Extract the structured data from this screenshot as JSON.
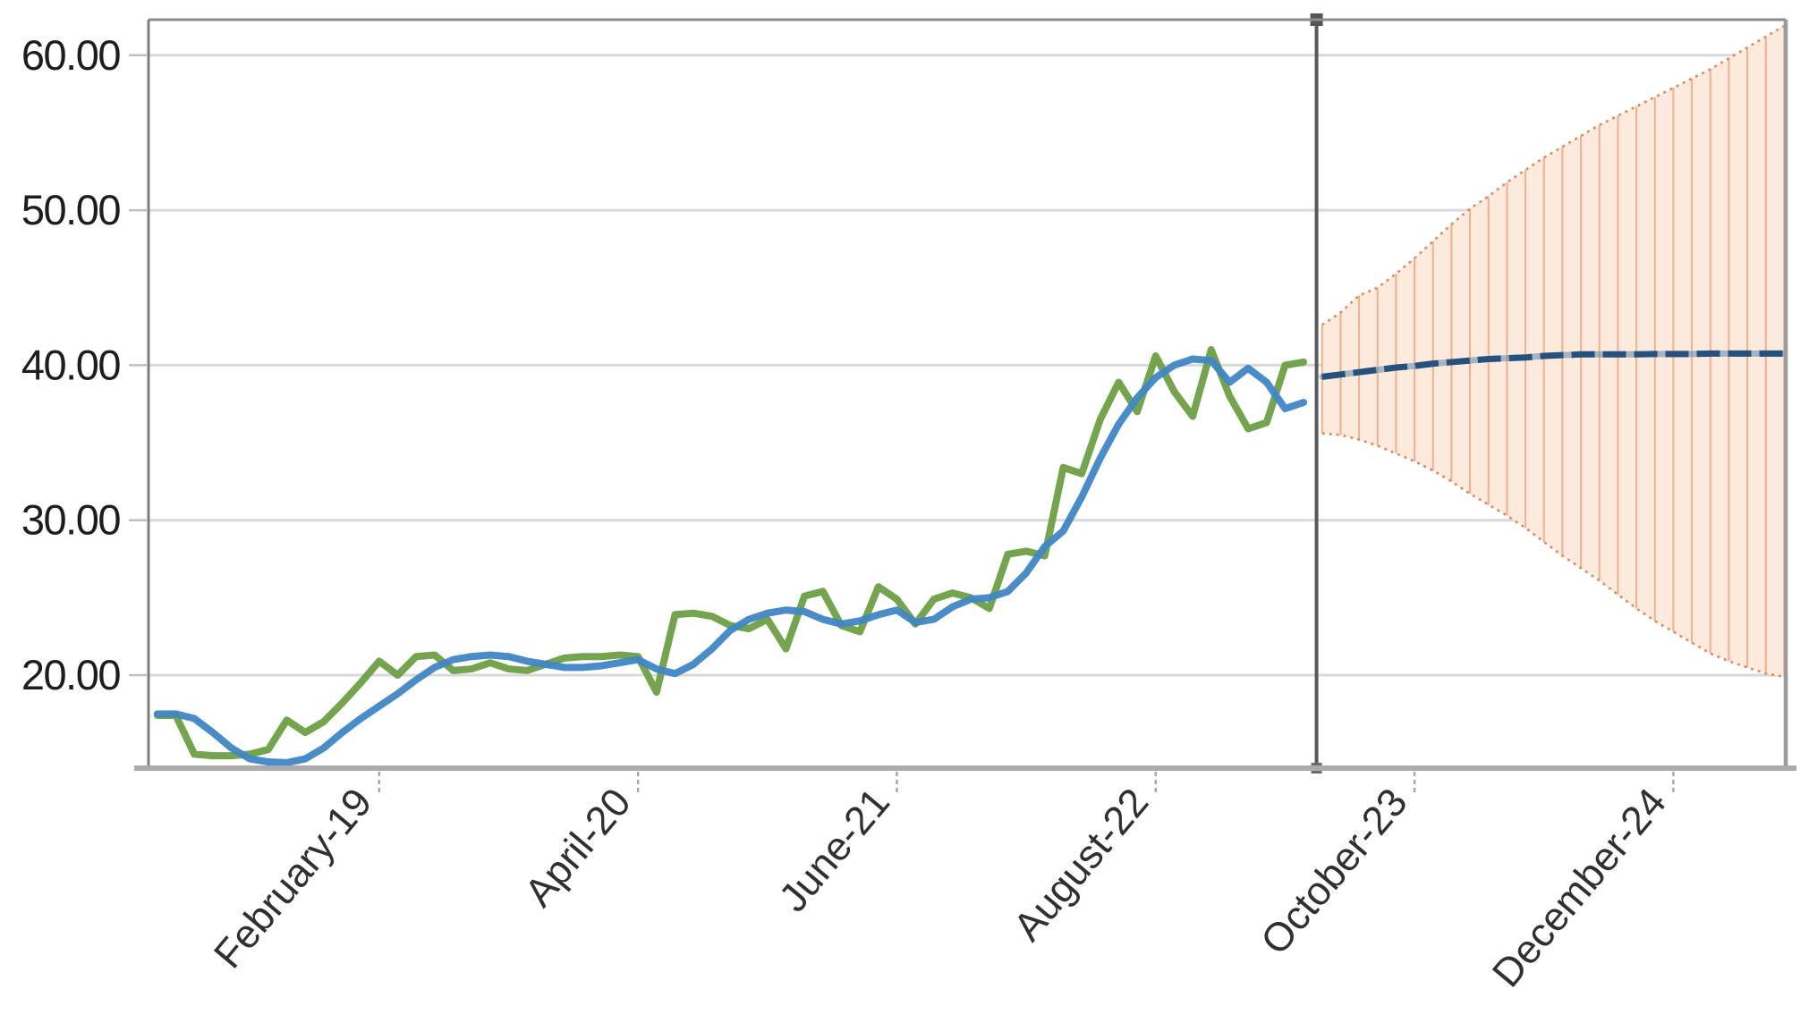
{
  "chart_data": {
    "type": "line",
    "title": "",
    "description": "Historical actual vs fitted monthly series with forecast line and expanding confidence interval band",
    "legend_position": "none",
    "grid": "horizontal-on",
    "x_axis": {
      "label_rotation_deg": -50,
      "ticks": [
        {
          "label": "February-19",
          "month": 13
        },
        {
          "label": "April-20",
          "month": 27
        },
        {
          "label": "June-21",
          "month": 41
        },
        {
          "label": "August-22",
          "month": 55
        },
        {
          "label": "October-23",
          "month": 69
        },
        {
          "label": "December-24",
          "month": 83
        }
      ]
    },
    "y_axis": {
      "min": 14.1,
      "max": 62.3,
      "ticks": [
        {
          "label": "60.00",
          "value": 60
        },
        {
          "label": "50.00",
          "value": 50
        },
        {
          "label": "40.00",
          "value": 40
        },
        {
          "label": "30.00",
          "value": 30
        },
        {
          "label": "20.00",
          "value": 20
        }
      ]
    },
    "series": [
      {
        "name": "actual-history",
        "color": "#6E9F45",
        "style": "solid",
        "month_start": 1,
        "values": [
          17.4,
          17.4,
          14.9,
          14.8,
          14.8,
          14.9,
          15.2,
          17.1,
          16.3,
          17.0,
          18.2,
          19.5,
          20.9,
          20.0,
          21.2,
          21.3,
          20.3,
          20.4,
          20.8,
          20.4,
          20.3,
          20.7,
          21.1,
          21.2,
          21.2,
          21.3,
          21.2,
          18.9,
          23.9,
          24.0,
          23.8,
          23.2,
          23.0,
          23.6,
          21.7,
          25.1,
          25.4,
          23.2,
          22.8,
          25.7,
          24.9,
          23.3,
          24.9,
          25.3,
          25.0,
          24.3,
          27.8,
          28.0,
          27.7,
          33.4,
          33.0,
          36.5,
          38.9,
          37.0,
          40.6,
          38.3,
          36.7,
          41.0,
          38.0,
          35.9,
          36.3,
          40.0,
          40.2
        ]
      },
      {
        "name": "fitted-history",
        "color": "#3F86C4",
        "style": "solid",
        "month_start": 1,
        "values": [
          17.5,
          17.5,
          17.2,
          16.3,
          15.3,
          14.6,
          14.4,
          14.35,
          14.6,
          15.3,
          16.3,
          17.2,
          18.0,
          18.8,
          19.7,
          20.5,
          21.0,
          21.2,
          21.3,
          21.2,
          20.9,
          20.7,
          20.5,
          20.5,
          20.6,
          20.8,
          21.0,
          20.4,
          20.1,
          20.7,
          21.7,
          22.9,
          23.6,
          24.0,
          24.2,
          24.1,
          23.6,
          23.3,
          23.5,
          23.9,
          24.2,
          23.4,
          23.6,
          24.4,
          24.9,
          25.0,
          25.4,
          26.6,
          28.3,
          29.3,
          31.5,
          34.0,
          36.2,
          37.9,
          39.2,
          40.0,
          40.4,
          40.3,
          38.9,
          39.8,
          38.9,
          37.2,
          37.6
        ]
      },
      {
        "name": "forecast",
        "color": "#24517E",
        "underlay_color": "#5F87AF",
        "style": "dashed",
        "month_start": 64,
        "values": [
          39.25,
          39.4,
          39.55,
          39.7,
          39.85,
          39.95,
          40.1,
          40.2,
          40.3,
          40.4,
          40.45,
          40.5,
          40.6,
          40.65,
          40.7,
          40.7,
          40.7,
          40.7,
          40.72,
          40.72,
          40.72,
          40.75,
          40.75,
          40.75,
          40.75,
          40.75
        ]
      }
    ],
    "confidence_band": {
      "month_start": 64,
      "fill": "#FCEBDD",
      "edge_color": "#DC8A5C",
      "hatch_color": "#EFB091",
      "upper": [
        42.6,
        43.4,
        44.5,
        45.0,
        45.9,
        46.9,
        48.0,
        49.1,
        50.1,
        50.9,
        51.8,
        52.6,
        53.4,
        54.1,
        54.8,
        55.5,
        56.1,
        56.7,
        57.3,
        57.9,
        58.5,
        59.1,
        59.8,
        60.5,
        61.2,
        61.9
      ],
      "lower": [
        35.6,
        35.5,
        35.2,
        34.8,
        34.3,
        33.8,
        33.2,
        32.5,
        31.7,
        31.0,
        30.3,
        29.5,
        28.6,
        27.7,
        26.9,
        26.1,
        25.2,
        24.3,
        23.5,
        22.8,
        22.1,
        21.4,
        20.9,
        20.5,
        20.1,
        19.9
      ]
    },
    "forecast_divider": {
      "month": 63.7,
      "color": "#58585A"
    },
    "colors": {
      "gridline": "#D9D9D9",
      "plot_border": "#8C8C8C",
      "bottom_axis": "#ACACAC",
      "tick_dash": "#A8A8A8",
      "y_label_text": "#1D1D1D",
      "x_label_text": "#303030"
    }
  }
}
